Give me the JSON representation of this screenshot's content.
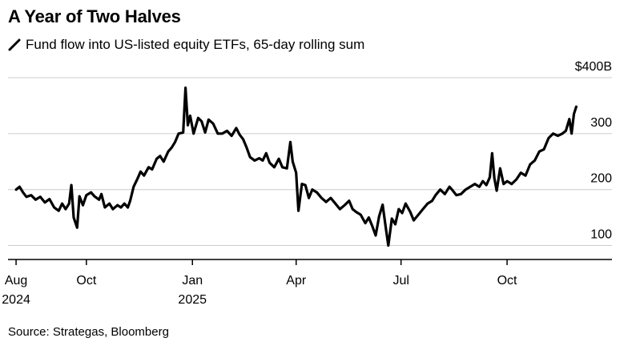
{
  "header": {
    "title": "A Year of Two Halves",
    "subtitle": "Fund flow into US-listed equity ETFs, 65-day rolling sum"
  },
  "footer": {
    "source": "Source: Strategas, Bloomberg"
  },
  "chart_data": {
    "type": "line",
    "title": "A Year of Two Halves",
    "subtitle": "Fund flow into US-listed equity ETFs, 65-day rolling sum",
    "xlabel": "",
    "ylabel": "",
    "ylim": [
      75,
      400
    ],
    "xlim": [
      "2024-07-25",
      "2025-12-31"
    ],
    "grid": true,
    "y_ticks": [
      {
        "value": 100,
        "label": "100"
      },
      {
        "value": 200,
        "label": "200"
      },
      {
        "value": 300,
        "label": "300"
      },
      {
        "value": 400,
        "label": "$400B"
      }
    ],
    "x_ticks": [
      {
        "date": "2024-08-01",
        "label": "Aug",
        "sublabel": "2024"
      },
      {
        "date": "2024-10-01",
        "label": "Oct",
        "sublabel": ""
      },
      {
        "date": "2025-01-01",
        "label": "Jan",
        "sublabel": "2025"
      },
      {
        "date": "2025-04-01",
        "label": "Apr",
        "sublabel": ""
      },
      {
        "date": "2025-07-01",
        "label": "Jul",
        "sublabel": ""
      },
      {
        "date": "2025-10-01",
        "label": "Oct",
        "sublabel": ""
      }
    ],
    "series": [
      {
        "name": "",
        "color": "#000000",
        "points": [
          [
            "2024-08-01",
            200
          ],
          [
            "2024-08-04",
            205
          ],
          [
            "2024-08-07",
            195
          ],
          [
            "2024-08-10",
            187
          ],
          [
            "2024-08-14",
            190
          ],
          [
            "2024-08-18",
            182
          ],
          [
            "2024-08-22",
            187
          ],
          [
            "2024-08-26",
            177
          ],
          [
            "2024-08-30",
            183
          ],
          [
            "2024-09-03",
            168
          ],
          [
            "2024-09-07",
            162
          ],
          [
            "2024-09-10",
            175
          ],
          [
            "2024-09-13",
            165
          ],
          [
            "2024-09-16",
            175
          ],
          [
            "2024-09-18",
            208
          ],
          [
            "2024-09-20",
            150
          ],
          [
            "2024-09-23",
            132
          ],
          [
            "2024-09-25",
            188
          ],
          [
            "2024-09-28",
            172
          ],
          [
            "2024-10-01",
            190
          ],
          [
            "2024-10-05",
            195
          ],
          [
            "2024-10-08",
            188
          ],
          [
            "2024-10-12",
            182
          ],
          [
            "2024-10-14",
            192
          ],
          [
            "2024-10-17",
            168
          ],
          [
            "2024-10-21",
            175
          ],
          [
            "2024-10-24",
            165
          ],
          [
            "2024-10-28",
            172
          ],
          [
            "2024-10-31",
            168
          ],
          [
            "2024-11-03",
            175
          ],
          [
            "2024-11-06",
            168
          ],
          [
            "2024-11-08",
            180
          ],
          [
            "2024-11-11",
            205
          ],
          [
            "2024-11-14",
            218
          ],
          [
            "2024-11-17",
            232
          ],
          [
            "2024-11-20",
            225
          ],
          [
            "2024-11-24",
            240
          ],
          [
            "2024-11-27",
            236
          ],
          [
            "2024-12-01",
            255
          ],
          [
            "2024-12-04",
            260
          ],
          [
            "2024-12-07",
            250
          ],
          [
            "2024-12-11",
            268
          ],
          [
            "2024-12-14",
            275
          ],
          [
            "2024-12-17",
            285
          ],
          [
            "2024-12-20",
            300
          ],
          [
            "2024-12-24",
            302
          ],
          [
            "2024-12-26",
            382
          ],
          [
            "2024-12-28",
            315
          ],
          [
            "2024-12-30",
            332
          ],
          [
            "2025-01-02",
            300
          ],
          [
            "2025-01-06",
            328
          ],
          [
            "2025-01-09",
            322
          ],
          [
            "2025-01-12",
            302
          ],
          [
            "2025-01-15",
            325
          ],
          [
            "2025-01-19",
            318
          ],
          [
            "2025-01-23",
            300
          ],
          [
            "2025-01-27",
            300
          ],
          [
            "2025-01-31",
            305
          ],
          [
            "2025-02-04",
            296
          ],
          [
            "2025-02-08",
            310
          ],
          [
            "2025-02-11",
            298
          ],
          [
            "2025-02-14",
            290
          ],
          [
            "2025-02-17",
            275
          ],
          [
            "2025-02-20",
            258
          ],
          [
            "2025-02-24",
            252
          ],
          [
            "2025-02-28",
            256
          ],
          [
            "2025-03-03",
            252
          ],
          [
            "2025-03-06",
            265
          ],
          [
            "2025-03-09",
            248
          ],
          [
            "2025-03-13",
            240
          ],
          [
            "2025-03-17",
            255
          ],
          [
            "2025-03-20",
            240
          ],
          [
            "2025-03-24",
            238
          ],
          [
            "2025-03-27",
            285
          ],
          [
            "2025-03-29",
            250
          ],
          [
            "2025-04-01",
            230
          ],
          [
            "2025-04-03",
            162
          ],
          [
            "2025-04-06",
            210
          ],
          [
            "2025-04-09",
            208
          ],
          [
            "2025-04-12",
            185
          ],
          [
            "2025-04-15",
            200
          ],
          [
            "2025-04-19",
            195
          ],
          [
            "2025-04-23",
            185
          ],
          [
            "2025-04-27",
            178
          ],
          [
            "2025-05-01",
            185
          ],
          [
            "2025-05-05",
            175
          ],
          [
            "2025-05-09",
            165
          ],
          [
            "2025-05-13",
            172
          ],
          [
            "2025-05-17",
            180
          ],
          [
            "2025-05-20",
            165
          ],
          [
            "2025-05-23",
            160
          ],
          [
            "2025-05-27",
            155
          ],
          [
            "2025-05-31",
            140
          ],
          [
            "2025-06-03",
            150
          ],
          [
            "2025-06-06",
            135
          ],
          [
            "2025-06-09",
            118
          ],
          [
            "2025-06-12",
            152
          ],
          [
            "2025-06-15",
            173
          ],
          [
            "2025-06-18",
            128
          ],
          [
            "2025-06-20",
            100
          ],
          [
            "2025-06-23",
            148
          ],
          [
            "2025-06-26",
            138
          ],
          [
            "2025-06-29",
            165
          ],
          [
            "2025-07-02",
            158
          ],
          [
            "2025-07-05",
            175
          ],
          [
            "2025-07-09",
            160
          ],
          [
            "2025-07-12",
            145
          ],
          [
            "2025-07-16",
            155
          ],
          [
            "2025-07-20",
            165
          ],
          [
            "2025-07-24",
            175
          ],
          [
            "2025-07-28",
            180
          ],
          [
            "2025-07-31",
            190
          ],
          [
            "2025-08-04",
            200
          ],
          [
            "2025-08-08",
            192
          ],
          [
            "2025-08-12",
            205
          ],
          [
            "2025-08-15",
            198
          ],
          [
            "2025-08-18",
            190
          ],
          [
            "2025-08-22",
            192
          ],
          [
            "2025-08-26",
            200
          ],
          [
            "2025-08-30",
            205
          ],
          [
            "2025-09-03",
            210
          ],
          [
            "2025-09-07",
            205
          ],
          [
            "2025-09-10",
            215
          ],
          [
            "2025-09-13",
            208
          ],
          [
            "2025-09-16",
            222
          ],
          [
            "2025-09-18",
            265
          ],
          [
            "2025-09-20",
            220
          ],
          [
            "2025-09-22",
            198
          ],
          [
            "2025-09-25",
            238
          ],
          [
            "2025-09-28",
            210
          ],
          [
            "2025-10-01",
            215
          ],
          [
            "2025-10-05",
            210
          ],
          [
            "2025-10-09",
            218
          ],
          [
            "2025-10-13",
            230
          ],
          [
            "2025-10-17",
            225
          ],
          [
            "2025-10-21",
            245
          ],
          [
            "2025-10-25",
            252
          ],
          [
            "2025-10-29",
            268
          ],
          [
            "2025-11-02",
            272
          ],
          [
            "2025-11-06",
            292
          ],
          [
            "2025-11-10",
            300
          ],
          [
            "2025-11-14",
            296
          ],
          [
            "2025-11-18",
            300
          ],
          [
            "2025-11-21",
            305
          ],
          [
            "2025-11-24",
            326
          ],
          [
            "2025-11-26",
            300
          ],
          [
            "2025-11-28",
            335
          ],
          [
            "2025-11-30",
            348
          ]
        ]
      }
    ]
  }
}
